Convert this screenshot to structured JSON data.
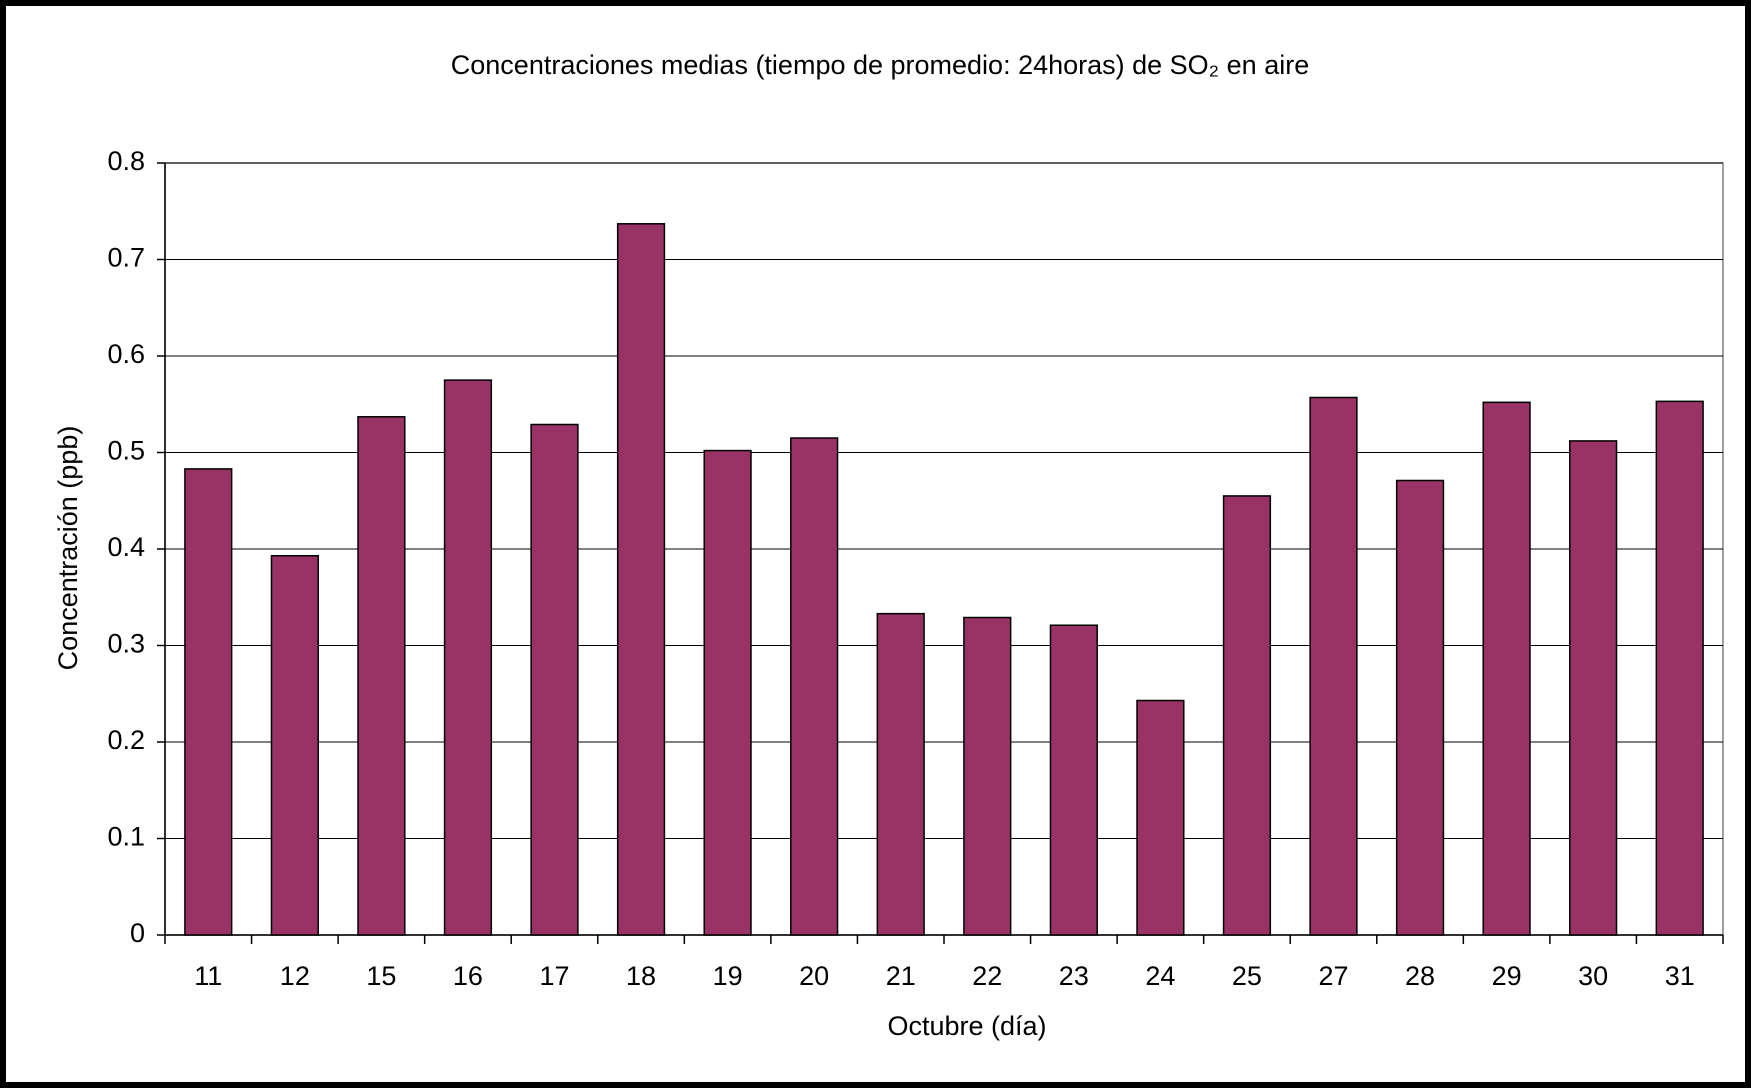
{
  "chart_data": {
    "type": "bar",
    "title": "Concentraciones medias (tiempo de promedio: 24horas) de SO₂ en aire",
    "x_label": "Octubre (día)",
    "y_label": "Concentración (ppb)",
    "categories": [
      "11",
      "12",
      "15",
      "16",
      "17",
      "18",
      "19",
      "20",
      "21",
      "22",
      "23",
      "24",
      "25",
      "27",
      "28",
      "29",
      "30",
      "31"
    ],
    "values": [
      0.483,
      0.393,
      0.537,
      0.575,
      0.529,
      0.737,
      0.502,
      0.515,
      0.333,
      0.329,
      0.321,
      0.243,
      0.455,
      0.557,
      0.471,
      0.552,
      0.512,
      0.553
    ],
    "color": "#993366",
    "ylim": [
      0,
      0.8
    ],
    "yticks": [
      0,
      0.1,
      0.2,
      0.3,
      0.4,
      0.5,
      0.6,
      0.7,
      0.8
    ],
    "grid": true
  }
}
